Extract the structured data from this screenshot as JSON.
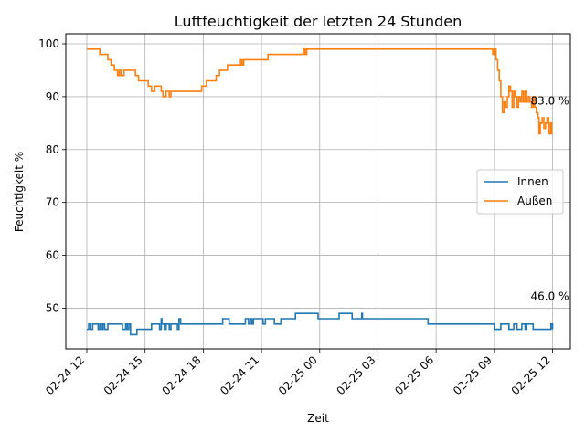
{
  "chart_data": {
    "type": "line",
    "title": "Luftfeuchtigkeit der letzten 24 Stunden",
    "xlabel": "Zeit",
    "ylabel": "Feuchtigkeit %",
    "x_range": [
      "2024-02-24 10:55",
      "2024-02-25 12:55"
    ],
    "ylim": [
      42.3,
      101.9
    ],
    "x_ticks": [
      {
        "t": "2024-02-24 12:00",
        "label": "02-24 12"
      },
      {
        "t": "2024-02-24 15:00",
        "label": "02-24 15"
      },
      {
        "t": "2024-02-24 18:00",
        "label": "02-24 18"
      },
      {
        "t": "2024-02-24 21:00",
        "label": "02-24 21"
      },
      {
        "t": "2024-02-25 00:00",
        "label": "02-25 00"
      },
      {
        "t": "2024-02-25 03:00",
        "label": "02-25 03"
      },
      {
        "t": "2024-02-25 06:00",
        "label": "02-25 06"
      },
      {
        "t": "2024-02-25 09:00",
        "label": "02-25 09"
      },
      {
        "t": "2024-02-25 12:00",
        "label": "02-25 12"
      }
    ],
    "y_ticks": [
      50,
      60,
      70,
      80,
      90,
      100
    ],
    "grid": true,
    "legend_position": "center-right",
    "series": [
      {
        "name": "Innen",
        "color": "#1f77b4",
        "step": true,
        "points": [
          [
            "2024-02-24 12:00",
            46
          ],
          [
            "2024-02-24 12:06",
            47
          ],
          [
            "2024-02-24 12:12",
            46
          ],
          [
            "2024-02-24 12:18",
            47
          ],
          [
            "2024-02-24 12:35",
            46
          ],
          [
            "2024-02-24 12:40",
            47
          ],
          [
            "2024-02-24 12:45",
            46
          ],
          [
            "2024-02-24 12:50",
            47
          ],
          [
            "2024-02-24 12:55",
            46
          ],
          [
            "2024-02-24 13:05",
            47
          ],
          [
            "2024-02-24 13:50",
            46
          ],
          [
            "2024-02-24 14:00",
            47
          ],
          [
            "2024-02-24 14:05",
            46
          ],
          [
            "2024-02-24 14:10",
            47
          ],
          [
            "2024-02-24 14:15",
            45
          ],
          [
            "2024-02-24 14:35",
            46
          ],
          [
            "2024-02-24 15:20",
            47
          ],
          [
            "2024-02-24 15:45",
            46
          ],
          [
            "2024-02-24 15:50",
            48
          ],
          [
            "2024-02-24 15:52",
            47
          ],
          [
            "2024-02-24 16:00",
            46
          ],
          [
            "2024-02-24 16:05",
            47
          ],
          [
            "2024-02-24 16:15",
            46
          ],
          [
            "2024-02-24 16:20",
            47
          ],
          [
            "2024-02-24 16:40",
            46
          ],
          [
            "2024-02-24 16:45",
            48
          ],
          [
            "2024-02-24 16:50",
            47
          ],
          [
            "2024-02-24 19:00",
            48
          ],
          [
            "2024-02-24 19:20",
            47
          ],
          [
            "2024-02-24 20:10",
            48
          ],
          [
            "2024-02-24 20:20",
            47
          ],
          [
            "2024-02-24 20:25",
            48
          ],
          [
            "2024-02-24 20:30",
            47
          ],
          [
            "2024-02-24 20:35",
            48
          ],
          [
            "2024-02-24 21:05",
            47
          ],
          [
            "2024-02-24 21:12",
            48
          ],
          [
            "2024-02-24 21:40",
            47
          ],
          [
            "2024-02-24 22:00",
            48
          ],
          [
            "2024-02-24 22:45",
            49
          ],
          [
            "2024-02-24 23:55",
            48
          ],
          [
            "2024-02-25 01:00",
            49
          ],
          [
            "2024-02-25 01:40",
            48
          ],
          [
            "2024-02-25 02:10",
            49
          ],
          [
            "2024-02-25 02:12",
            48
          ],
          [
            "2024-02-25 05:35",
            47
          ],
          [
            "2024-02-25 06:40",
            47
          ],
          [
            "2024-02-25 09:00",
            46
          ],
          [
            "2024-02-25 09:20",
            47
          ],
          [
            "2024-02-25 09:45",
            46
          ],
          [
            "2024-02-25 10:00",
            47
          ],
          [
            "2024-02-25 10:10",
            46
          ],
          [
            "2024-02-25 10:25",
            47
          ],
          [
            "2024-02-25 10:35",
            46
          ],
          [
            "2024-02-25 10:40",
            47
          ],
          [
            "2024-02-25 10:50",
            47
          ],
          [
            "2024-02-25 11:00",
            46
          ],
          [
            "2024-02-25 11:55",
            47
          ],
          [
            "2024-02-25 12:00",
            46
          ]
        ]
      },
      {
        "name": "Außen",
        "color": "#ff7f0e",
        "step": true,
        "points": [
          [
            "2024-02-24 12:00",
            99
          ],
          [
            "2024-02-24 12:40",
            98
          ],
          [
            "2024-02-24 13:05",
            97
          ],
          [
            "2024-02-24 13:15",
            96
          ],
          [
            "2024-02-24 13:25",
            95
          ],
          [
            "2024-02-24 13:35",
            94
          ],
          [
            "2024-02-24 13:40",
            95
          ],
          [
            "2024-02-24 13:45",
            94
          ],
          [
            "2024-02-24 13:55",
            95
          ],
          [
            "2024-02-24 14:30",
            94
          ],
          [
            "2024-02-24 14:40",
            93
          ],
          [
            "2024-02-24 15:10",
            92
          ],
          [
            "2024-02-24 15:20",
            91
          ],
          [
            "2024-02-24 15:30",
            92
          ],
          [
            "2024-02-24 15:50",
            91
          ],
          [
            "2024-02-24 15:55",
            90
          ],
          [
            "2024-02-24 16:05",
            91
          ],
          [
            "2024-02-24 16:15",
            90
          ],
          [
            "2024-02-24 16:20",
            91
          ],
          [
            "2024-02-24 17:55",
            92
          ],
          [
            "2024-02-24 18:10",
            93
          ],
          [
            "2024-02-24 18:40",
            94
          ],
          [
            "2024-02-24 18:50",
            95
          ],
          [
            "2024-02-24 19:15",
            96
          ],
          [
            "2024-02-24 19:55",
            97
          ],
          [
            "2024-02-24 20:00",
            96
          ],
          [
            "2024-02-24 20:05",
            97
          ],
          [
            "2024-02-24 21:20",
            98
          ],
          [
            "2024-02-24 23:10",
            99
          ],
          [
            "2024-02-24 23:15",
            98
          ],
          [
            "2024-02-24 23:20",
            99
          ],
          [
            "2024-02-25 08:55",
            98
          ],
          [
            "2024-02-25 09:00",
            99
          ],
          [
            "2024-02-25 09:05",
            97
          ],
          [
            "2024-02-25 09:10",
            95
          ],
          [
            "2024-02-25 09:15",
            93
          ],
          [
            "2024-02-25 09:20",
            90
          ],
          [
            "2024-02-25 09:25",
            87
          ],
          [
            "2024-02-25 09:30",
            89
          ],
          [
            "2024-02-25 09:35",
            88
          ],
          [
            "2024-02-25 09:40",
            90
          ],
          [
            "2024-02-25 09:45",
            92
          ],
          [
            "2024-02-25 09:50",
            91
          ],
          [
            "2024-02-25 09:55",
            88
          ],
          [
            "2024-02-25 10:00",
            91
          ],
          [
            "2024-02-25 10:05",
            90
          ],
          [
            "2024-02-25 10:10",
            88
          ],
          [
            "2024-02-25 10:15",
            90
          ],
          [
            "2024-02-25 10:20",
            89
          ],
          [
            "2024-02-25 10:25",
            91
          ],
          [
            "2024-02-25 10:30",
            89
          ],
          [
            "2024-02-25 10:35",
            91
          ],
          [
            "2024-02-25 10:40",
            89
          ],
          [
            "2024-02-25 10:45",
            90
          ],
          [
            "2024-02-25 10:50",
            89
          ],
          [
            "2024-02-25 10:55",
            88
          ],
          [
            "2024-02-25 11:00",
            90
          ],
          [
            "2024-02-25 11:05",
            88
          ],
          [
            "2024-02-25 11:10",
            87
          ],
          [
            "2024-02-25 11:15",
            86
          ],
          [
            "2024-02-25 11:18",
            83
          ],
          [
            "2024-02-25 11:22",
            85
          ],
          [
            "2024-02-25 11:28",
            86
          ],
          [
            "2024-02-25 11:33",
            84
          ],
          [
            "2024-02-25 11:38",
            85
          ],
          [
            "2024-02-25 11:43",
            86
          ],
          [
            "2024-02-25 11:48",
            83
          ],
          [
            "2024-02-25 11:53",
            85
          ],
          [
            "2024-02-25 11:57",
            83
          ],
          [
            "2024-02-25 12:00",
            83
          ]
        ]
      }
    ],
    "annotations": [
      {
        "text": "83.0 %",
        "t": "2024-02-25 12:00",
        "y": 83
      },
      {
        "text": "46.0 %",
        "t": "2024-02-25 12:00",
        "y": 46
      }
    ]
  }
}
